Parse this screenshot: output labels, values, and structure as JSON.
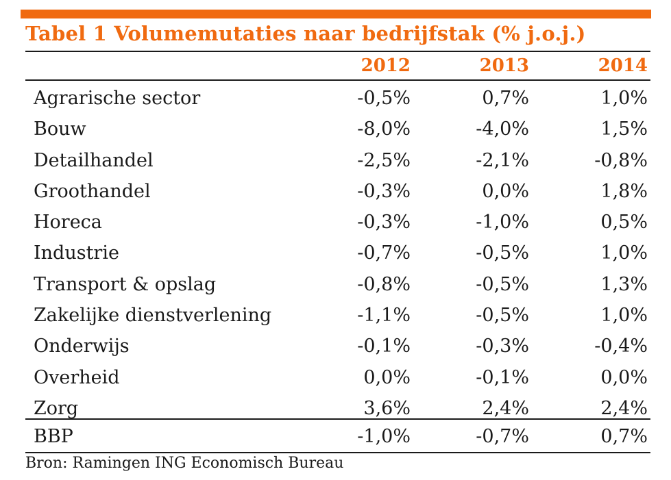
{
  "title": "Tabel 1 Volumemutaties naar bedrijfstak (% j.o.j.)",
  "columns": [
    "2012",
    "2013",
    "2014"
  ],
  "rows": [
    {
      "label": "Agrarische sector",
      "values": [
        "-0,5%",
        "0,7%",
        "1,0%"
      ]
    },
    {
      "label": "Bouw",
      "values": [
        "-8,0%",
        "-4,0%",
        "1,5%"
      ]
    },
    {
      "label": "Detailhandel",
      "values": [
        "-2,5%",
        "-2,1%",
        "-0,8%"
      ]
    },
    {
      "label": "Groothandel",
      "values": [
        "-0,3%",
        "0,0%",
        "1,8%"
      ]
    },
    {
      "label": "Horeca",
      "values": [
        "-0,3%",
        "-1,0%",
        "0,5%"
      ]
    },
    {
      "label": "Industrie",
      "values": [
        "-0,7%",
        "-0,5%",
        "1,0%"
      ]
    },
    {
      "label": "Transport & opslag",
      "values": [
        "-0,8%",
        "-0,5%",
        "1,3%"
      ]
    },
    {
      "label": "Zakelijke dienstverlening",
      "values": [
        "-1,1%",
        "-0,5%",
        "1,0%"
      ]
    },
    {
      "label": "Onderwijs",
      "values": [
        "-0,1%",
        "-0,3%",
        "-0,4%"
      ]
    },
    {
      "label": "Overheid",
      "values": [
        "0,0%",
        "-0,1%",
        "0,0%"
      ]
    },
    {
      "label": "Zorg",
      "values": [
        "3,6%",
        "2,4%",
        "2,4%"
      ]
    }
  ],
  "total": {
    "label": "BBP",
    "values": [
      "-1,0%",
      "-0,7%",
      "0,7%"
    ]
  },
  "source": "Bron: Ramingen ING Economisch Bureau",
  "colors": {
    "accent": "#f06a10",
    "text": "#1a1a1a"
  }
}
